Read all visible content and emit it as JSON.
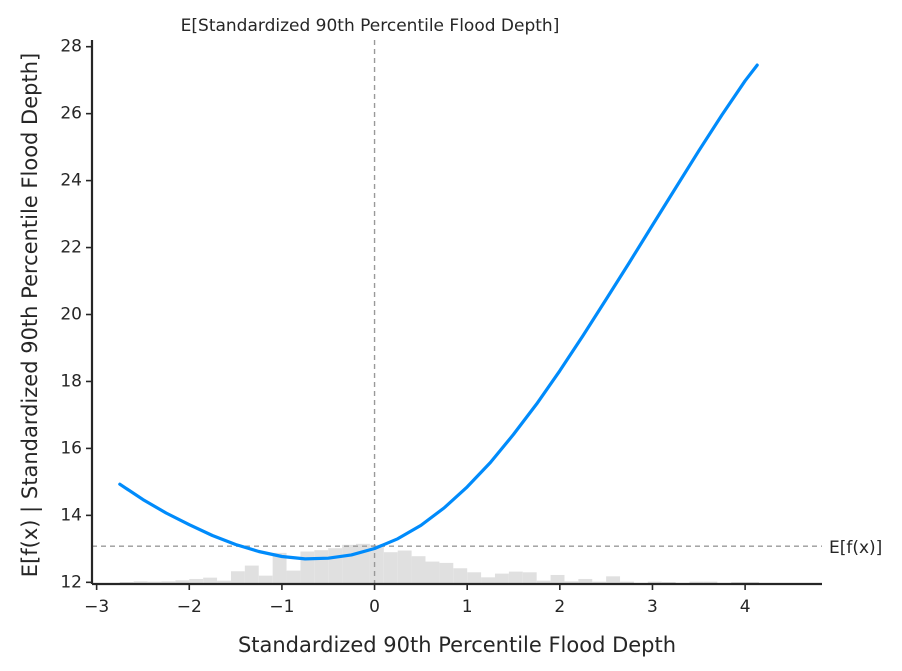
{
  "chart_data": {
    "type": "line",
    "title": "",
    "xlabel": "Standardized 90th Percentile Flood Depth",
    "ylabel": "E[f(x) | Standardized 90th Percentile Flood Depth]",
    "xlim": [
      -3.05,
      4.83
    ],
    "ylim": [
      11.95,
      28.2
    ],
    "xticks": [
      -3,
      -2,
      -1,
      0,
      1,
      2,
      3,
      4
    ],
    "xtick_labels": [
      "−3",
      "−2",
      "−1",
      "0",
      "1",
      "2",
      "3",
      "4"
    ],
    "yticks": [
      12,
      14,
      16,
      18,
      20,
      22,
      24,
      26,
      28
    ],
    "ytick_labels": [
      "12",
      "14",
      "16",
      "18",
      "20",
      "22",
      "24",
      "26",
      "28"
    ],
    "grid": false,
    "series": [
      {
        "color": "#008bfb",
        "x": [
          -2.75,
          -2.5,
          -2.25,
          -2.0,
          -1.75,
          -1.5,
          -1.25,
          -1.0,
          -0.75,
          -0.5,
          -0.25,
          0.0,
          0.25,
          0.5,
          0.75,
          1.0,
          1.25,
          1.5,
          1.75,
          2.0,
          2.25,
          2.5,
          2.75,
          3.0,
          3.25,
          3.5,
          3.75,
          4.0,
          4.25,
          4.45
        ],
        "y": [
          14.93,
          14.47,
          14.07,
          13.72,
          13.4,
          13.13,
          12.92,
          12.77,
          12.7,
          12.72,
          12.82,
          13.01,
          13.3,
          13.7,
          14.22,
          14.85,
          15.58,
          16.42,
          17.33,
          18.32,
          19.37,
          20.45,
          21.55,
          22.67,
          23.78,
          24.89,
          25.96,
          26.98,
          27.88,
          28.5
        ]
      }
    ],
    "reference_lines": {
      "vertical": {
        "x": 0,
        "label": "E[Standardized 90th Percentile Flood Depth]"
      },
      "horizontal": {
        "y": 13.08,
        "label": "E[f(x)]"
      },
      "color": "#999999"
    },
    "histogram": {
      "color": "#e0e0e0",
      "bin_edges": [
        -2.75,
        -2.6,
        -2.45,
        -2.3,
        -2.15,
        -2.0,
        -1.85,
        -1.7,
        -1.55,
        -1.4,
        -1.25,
        -1.1,
        -0.95,
        -0.8,
        -0.65,
        -0.5,
        -0.35,
        -0.2,
        -0.05,
        0.1,
        0.25,
        0.4,
        0.55,
        0.7,
        0.85,
        1.0,
        1.15,
        1.3,
        1.45,
        1.6,
        1.75,
        1.9,
        2.05,
        2.2,
        2.35,
        2.5,
        2.65,
        2.8,
        2.95,
        3.1,
        3.25,
        3.4,
        3.55,
        3.7,
        3.85,
        4.0,
        4.15,
        4.3,
        4.45
      ],
      "heights": [
        0.01,
        0.03,
        0.02,
        0.03,
        0.06,
        0.1,
        0.14,
        0.05,
        0.33,
        0.5,
        0.2,
        0.88,
        0.35,
        0.92,
        0.96,
        1.02,
        1.12,
        1.15,
        1.12,
        0.9,
        0.95,
        0.78,
        0.62,
        0.58,
        0.42,
        0.3,
        0.15,
        0.26,
        0.32,
        0.3,
        0.05,
        0.22,
        0.03,
        0.1,
        0.02,
        0.18,
        0.02,
        0.0,
        0.02,
        0.01,
        0.0,
        0.02,
        0.02,
        0.0,
        0.01,
        0.01,
        0.0,
        0.0
      ],
      "data_units": "relative density (axis units above 12)"
    }
  }
}
